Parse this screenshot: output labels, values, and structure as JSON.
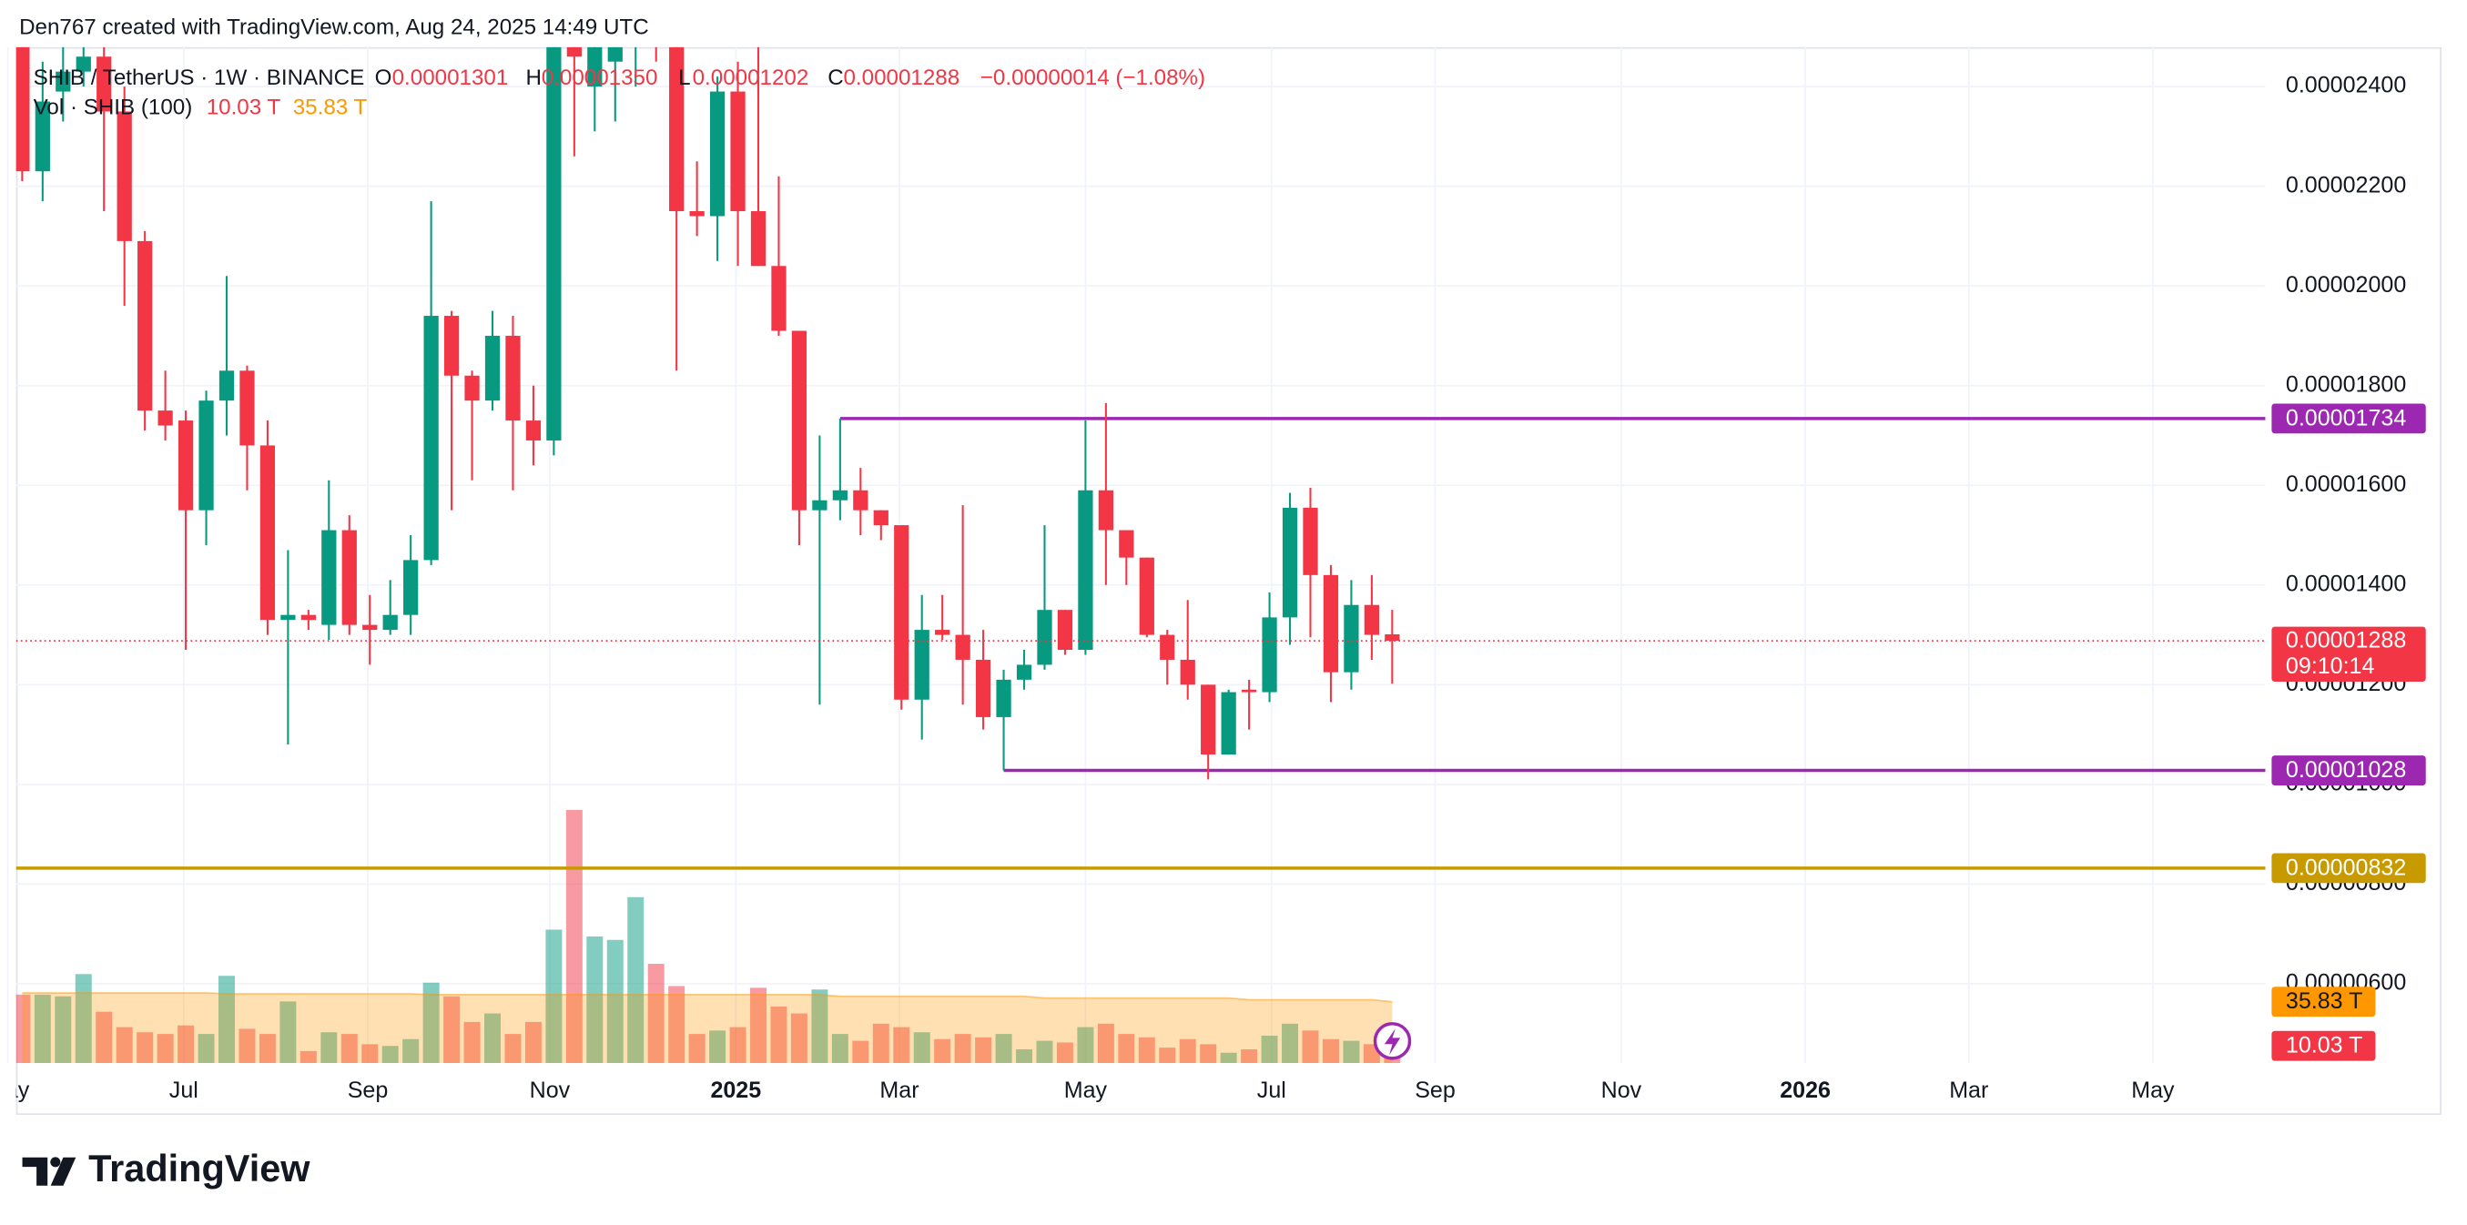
{
  "header": "Den767 created with TradingView.com, Aug 24, 2025 14:49 UTC",
  "branding": "TradingView",
  "chart_data": {
    "type": "candlestick",
    "symbol": "SHIB / TetherUS · 1W · BINANCE",
    "ohlc_legend": [
      [
        "O",
        "0.00001301"
      ],
      [
        "H",
        "0.00001350"
      ],
      [
        "L",
        "0.00001202"
      ],
      [
        "C",
        "0.00001288"
      ]
    ],
    "change": "−0.00000014 (−1.08%)",
    "countdown": "09:10:14",
    "up_color": "#089981",
    "down_color": "#f23645",
    "grid": true,
    "x": [
      0,
      1,
      2,
      3,
      4,
      5,
      6,
      7,
      8,
      9,
      10,
      11,
      12,
      13,
      14,
      15,
      16,
      17,
      18,
      19,
      20,
      21,
      22,
      23,
      24,
      25,
      26,
      27,
      28,
      29,
      30,
      31,
      32,
      33,
      34,
      35,
      36,
      37,
      38,
      39,
      40,
      41,
      42,
      43,
      44,
      45,
      46,
      47,
      48,
      49,
      50,
      51,
      52,
      53,
      54,
      55,
      56,
      57,
      58,
      59,
      60,
      61,
      62,
      63,
      64,
      65,
      66,
      67
    ],
    "open": [
      2.48e-05,
      2.23e-05,
      2.39e-05,
      2.43e-05,
      2.46e-05,
      2.35e-05,
      2.09e-05,
      1.75e-05,
      1.73e-05,
      1.55e-05,
      1.77e-05,
      1.83e-05,
      1.68e-05,
      1.33e-05,
      1.34e-05,
      1.32e-05,
      1.51e-05,
      1.32e-05,
      1.31e-05,
      1.34e-05,
      1.45e-05,
      1.94e-05,
      1.82e-05,
      1.77e-05,
      1.9e-05,
      1.73e-05,
      1.69e-05,
      2.6e-05,
      2.4e-05,
      2.45e-05,
      2.55e-05,
      2.7e-05,
      2.6e-05,
      2.15e-05,
      2.14e-05,
      2.39e-05,
      2.15e-05,
      2.04e-05,
      1.91e-05,
      1.55e-05,
      1.57e-05,
      1.59e-05,
      1.55e-05,
      1.52e-05,
      1.17e-05,
      1.31e-05,
      1.3e-05,
      1.25e-05,
      1.135e-05,
      1.21e-05,
      1.24e-05,
      1.35e-05,
      1.27e-05,
      1.59e-05,
      1.51e-05,
      1.455e-05,
      1.3e-05,
      1.25e-05,
      1.2e-05,
      1.06e-05,
      1.19e-05,
      1.185e-05,
      1.335e-05,
      1.555e-05,
      1.42e-05,
      1.225e-05,
      1.36e-05,
      1.301e-05
    ],
    "high": [
      2.5e-05,
      2.45e-05,
      2.48e-05,
      2.5e-05,
      2.5e-05,
      2.4e-05,
      2.11e-05,
      1.83e-05,
      1.75e-05,
      1.79e-05,
      2.02e-05,
      1.84e-05,
      1.73e-05,
      1.47e-05,
      1.35e-05,
      1.61e-05,
      1.54e-05,
      1.38e-05,
      1.41e-05,
      1.5e-05,
      2.17e-05,
      1.95e-05,
      1.83e-05,
      1.95e-05,
      1.94e-05,
      1.8e-05,
      2.5e-05,
      2.7e-05,
      2.7e-05,
      2.7e-05,
      2.8e-05,
      2.8e-05,
      2.65e-05,
      2.25e-05,
      2.42e-05,
      2.45e-05,
      2.48e-05,
      2.22e-05,
      1.91e-05,
      1.7e-05,
      1.734e-05,
      1.635e-05,
      1.55e-05,
      1.52e-05,
      1.38e-05,
      1.38e-05,
      1.56e-05,
      1.31e-05,
      1.23e-05,
      1.27e-05,
      1.52e-05,
      1.35e-05,
      1.73e-05,
      1.765e-05,
      1.51e-05,
      1.455e-05,
      1.31e-05,
      1.37e-05,
      1.2e-05,
      1.19e-05,
      1.21e-05,
      1.385e-05,
      1.585e-05,
      1.595e-05,
      1.44e-05,
      1.41e-05,
      1.42e-05,
      1.35e-05
    ],
    "low": [
      2.21e-05,
      2.17e-05,
      2.33e-05,
      2.4e-05,
      2.15e-05,
      1.96e-05,
      1.71e-05,
      1.69e-05,
      1.27e-05,
      1.48e-05,
      1.7e-05,
      1.59e-05,
      1.3e-05,
      1.08e-05,
      1.31e-05,
      1.29e-05,
      1.3e-05,
      1.24e-05,
      1.3e-05,
      1.3e-05,
      1.44e-05,
      1.55e-05,
      1.61e-05,
      1.75e-05,
      1.59e-05,
      1.64e-05,
      1.66e-05,
      2.26e-05,
      2.31e-05,
      2.33e-05,
      2.4e-05,
      2.45e-05,
      1.83e-05,
      2.1e-05,
      2.05e-05,
      2.04e-05,
      2.04e-05,
      1.9e-05,
      1.48e-05,
      1.16e-05,
      1.53e-05,
      1.5e-05,
      1.49e-05,
      1.15e-05,
      1.09e-05,
      1.29e-05,
      1.16e-05,
      1.11e-05,
      1.028e-05,
      1.19e-05,
      1.23e-05,
      1.26e-05,
      1.26e-05,
      1.4e-05,
      1.4e-05,
      1.295e-05,
      1.2e-05,
      1.17e-05,
      1.01e-05,
      1.06e-05,
      1.11e-05,
      1.165e-05,
      1.28e-05,
      1.295e-05,
      1.165e-05,
      1.19e-05,
      1.25e-05,
      1.202e-05
    ],
    "close": [
      2.23e-05,
      2.37e-05,
      2.43e-05,
      2.46e-05,
      2.35e-05,
      2.09e-05,
      1.75e-05,
      1.72e-05,
      1.55e-05,
      1.77e-05,
      1.83e-05,
      1.68e-05,
      1.33e-05,
      1.34e-05,
      1.33e-05,
      1.51e-05,
      1.32e-05,
      1.31e-05,
      1.34e-05,
      1.45e-05,
      1.94e-05,
      1.82e-05,
      1.77e-05,
      1.9e-05,
      1.73e-05,
      1.69e-05,
      2.48e-05,
      2.46e-05,
      2.6e-05,
      2.65e-05,
      2.7e-05,
      2.6e-05,
      2.15e-05,
      2.14e-05,
      2.39e-05,
      2.15e-05,
      2.04e-05,
      1.91e-05,
      1.55e-05,
      1.57e-05,
      1.59e-05,
      1.55e-05,
      1.52e-05,
      1.17e-05,
      1.31e-05,
      1.3e-05,
      1.25e-05,
      1.135e-05,
      1.21e-05,
      1.24e-05,
      1.35e-05,
      1.27e-05,
      1.59e-05,
      1.51e-05,
      1.455e-05,
      1.3e-05,
      1.25e-05,
      1.2e-05,
      1.06e-05,
      1.185e-05,
      1.185e-05,
      1.335e-05,
      1.555e-05,
      1.42e-05,
      1.225e-05,
      1.36e-05,
      1.3e-05,
      1.288e-05
    ],
    "xlim": [
      -0.3,
      109.7
    ],
    "ylim": [
      4.41e-06,
      2.479e-05
    ],
    "xticks": [
      {
        "value": -0.7,
        "label": "May"
      },
      {
        "value": 7.9,
        "label": "Jul"
      },
      {
        "value": 16.9,
        "label": "Sep"
      },
      {
        "value": 25.8,
        "label": "Nov"
      },
      {
        "value": 34.9,
        "label": "2025"
      },
      {
        "value": 42.9,
        "label": "Mar"
      },
      {
        "value": 52,
        "label": "May"
      },
      {
        "value": 61.1,
        "label": "Jul"
      },
      {
        "value": 69.1,
        "label": "Sep"
      },
      {
        "value": 78.2,
        "label": "Nov"
      },
      {
        "value": 87.2,
        "label": "2026"
      },
      {
        "value": 95.2,
        "label": "Mar"
      },
      {
        "value": 104.2,
        "label": "May"
      }
    ],
    "yticks": [
      {
        "value": 6e-06,
        "label": "0.00000600"
      },
      {
        "value": 8e-06,
        "label": "0.00000800"
      },
      {
        "value": 1e-05,
        "label": "0.00001000"
      },
      {
        "value": 1.2e-05,
        "label": "0.00001200"
      },
      {
        "value": 1.4e-05,
        "label": "0.00001400"
      },
      {
        "value": 1.6e-05,
        "label": "0.00001600"
      },
      {
        "value": 1.8e-05,
        "label": "0.00001800"
      },
      {
        "value": 2e-05,
        "label": "0.00002000"
      },
      {
        "value": 2.2e-05,
        "label": "0.00002200"
      },
      {
        "value": 2.4e-05,
        "label": "0.00002400"
      }
    ],
    "levels": [
      {
        "value": 1.734e-05,
        "color": "#9c27b0",
        "from": 40
      },
      {
        "value": 1.028e-05,
        "color": "#9c27b0",
        "from": 48
      },
      {
        "value": 8.32e-06,
        "color": "#c79a00"
      }
    ],
    "volume": {
      "name": "Vol · SHIB (100)",
      "ylim": [
        0,
        160
      ],
      "ma_color": "#ff9800",
      "values": [
        40,
        40,
        39,
        52,
        30,
        21,
        18,
        17,
        22,
        17,
        51,
        20,
        17,
        36,
        7,
        18,
        17,
        11,
        10,
        14,
        47,
        39,
        24,
        29,
        17,
        24,
        78,
        148,
        74,
        72,
        97,
        58,
        45,
        17,
        19,
        21,
        44,
        33,
        29,
        43,
        17,
        13,
        23,
        21,
        18,
        14,
        17,
        15,
        17,
        8,
        13,
        12,
        21,
        23,
        17,
        15,
        9,
        14,
        11,
        6,
        8,
        16,
        23,
        19,
        14,
        13,
        11,
        10.03
      ],
      "ma": [
        41,
        41,
        41,
        41,
        41,
        41,
        41,
        41,
        41,
        41,
        40.5,
        40.5,
        40.5,
        40.5,
        40.5,
        40.5,
        40.5,
        40.5,
        40.5,
        40.5,
        40,
        40,
        40,
        40,
        40,
        40,
        40,
        40,
        40,
        40,
        40,
        40,
        40,
        40,
        40,
        40,
        40,
        40,
        40,
        40,
        39,
        39,
        39,
        39,
        39,
        39,
        39,
        39,
        39,
        39,
        38,
        38,
        38,
        38,
        38,
        38,
        38,
        38,
        38,
        38,
        37,
        37,
        37,
        37,
        37,
        37,
        37,
        35.83
      ],
      "legend": [
        {
          "value": 10.03,
          "label": "10.03 T"
        },
        {
          "value": 35.83,
          "label": "35.83 T"
        }
      ]
    }
  }
}
